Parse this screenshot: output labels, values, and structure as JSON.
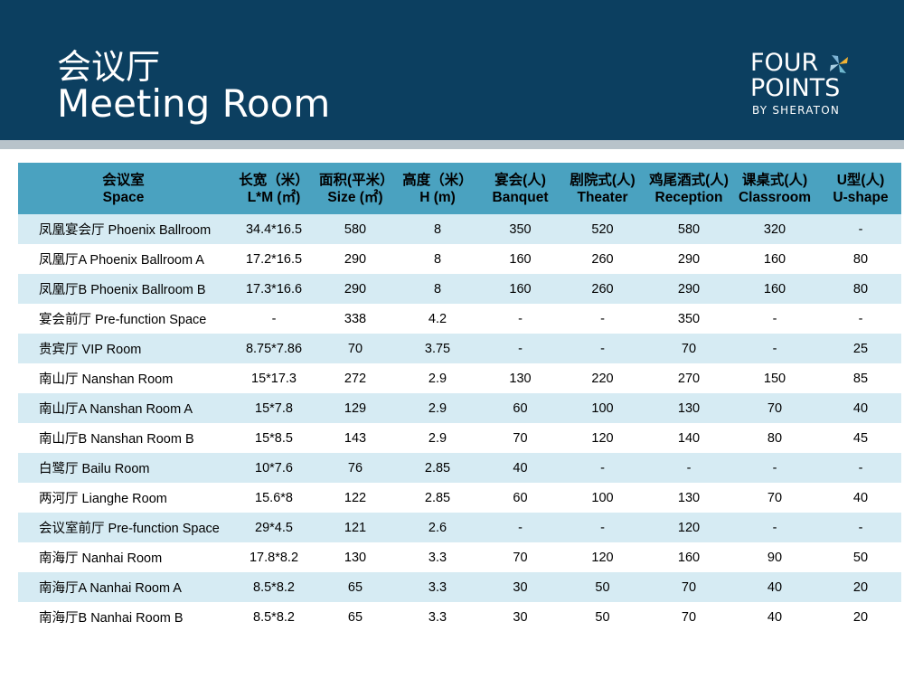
{
  "header": {
    "title_cn": "会议厅",
    "title_en": "Meeting Room",
    "logo": {
      "line1": "FOUR",
      "line2": "POINTS",
      "line3": "BY SHERATON"
    }
  },
  "table": {
    "columns": [
      {
        "cn": "会议室",
        "en": "Space"
      },
      {
        "cn": "长宽（米）",
        "en": "L*M (㎡)"
      },
      {
        "cn": "面积(平米）",
        "en": "Size (㎡)"
      },
      {
        "cn": "高度（米）",
        "en": "H (m)"
      },
      {
        "cn": "宴会(人)",
        "en": "Banquet"
      },
      {
        "cn": "剧院式(人)",
        "en": "Theater"
      },
      {
        "cn": "鸡尾酒式(人)",
        "en": "Reception"
      },
      {
        "cn": "课桌式(人)",
        "en": "Classroom"
      },
      {
        "cn": "U型(人)",
        "en": "U-shape"
      }
    ],
    "rows": [
      [
        "凤凰宴会厅 Phoenix Ballroom",
        "34.4*16.5",
        "580",
        "8",
        "350",
        "520",
        "580",
        "320",
        "-"
      ],
      [
        "凤凰厅A Phoenix Ballroom A",
        "17.2*16.5",
        "290",
        "8",
        "160",
        "260",
        "290",
        "160",
        "80"
      ],
      [
        "凤凰厅B Phoenix Ballroom B",
        "17.3*16.6",
        "290",
        "8",
        "160",
        "260",
        "290",
        "160",
        "80"
      ],
      [
        "宴会前厅 Pre-function Space",
        "-",
        "338",
        "4.2",
        "-",
        "-",
        "350",
        "-",
        "-"
      ],
      [
        "贵宾厅 VIP Room",
        "8.75*7.86",
        "70",
        "3.75",
        "-",
        "-",
        "70",
        "-",
        "25"
      ],
      [
        "南山厅 Nanshan Room",
        "15*17.3",
        "272",
        "2.9",
        "130",
        "220",
        "270",
        "150",
        "85"
      ],
      [
        "南山厅A Nanshan Room A",
        "15*7.8",
        "129",
        "2.9",
        "60",
        "100",
        "130",
        "70",
        "40"
      ],
      [
        "南山厅B Nanshan Room B",
        "15*8.5",
        "143",
        "2.9",
        "70",
        "120",
        "140",
        "80",
        "45"
      ],
      [
        "白鹭厅 Bailu Room",
        "10*7.6",
        "76",
        "2.85",
        "40",
        "-",
        "-",
        "-",
        "-"
      ],
      [
        "两河厅 Lianghe Room",
        "15.6*8",
        "122",
        "2.85",
        "60",
        "100",
        "130",
        "70",
        "40"
      ],
      [
        "会议室前厅 Pre-function Space",
        "29*4.5",
        "121",
        "2.6",
        "-",
        "-",
        "120",
        "-",
        "-"
      ],
      [
        "南海厅 Nanhai Room",
        "17.8*8.2",
        "130",
        "3.3",
        "70",
        "120",
        "160",
        "90",
        "50"
      ],
      [
        "南海厅A Nanhai Room A",
        "8.5*8.2",
        "65",
        "3.3",
        "30",
        "50",
        "70",
        "40",
        "20"
      ],
      [
        "南海厅B Nanhai Room B",
        "8.5*8.2",
        "65",
        "3.3",
        "30",
        "50",
        "70",
        "40",
        "20"
      ]
    ]
  },
  "colors": {
    "header_bg": "#0c3f60",
    "table_header_bg": "#4aa2c0",
    "row_stripe": "#d6ebf3"
  }
}
